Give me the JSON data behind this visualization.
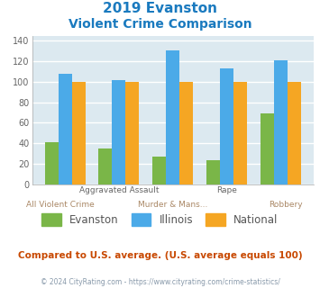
{
  "title_line1": "2019 Evanston",
  "title_line2": "Violent Crime Comparison",
  "title_color": "#1a7abf",
  "categories": [
    "All Violent Crime",
    "Aggravated Assault",
    "Murder & Mans...",
    "Rape",
    "Robbery"
  ],
  "evanston_values": [
    41,
    35,
    27,
    23,
    69
  ],
  "illinois_values": [
    108,
    102,
    131,
    113,
    121
  ],
  "national_values": [
    100,
    100,
    100,
    100,
    100
  ],
  "evanston_color": "#7ab648",
  "illinois_color": "#4baae8",
  "national_color": "#f5a623",
  "ylim": [
    0,
    145
  ],
  "yticks": [
    0,
    20,
    40,
    60,
    80,
    100,
    120,
    140
  ],
  "bar_width": 0.25,
  "bg_color": "#dce9f0",
  "grid_color": "#ffffff",
  "legend_labels": [
    "Evanston",
    "Illinois",
    "National"
  ],
  "upper_tick_labels": [
    "",
    "Aggravated Assault",
    "",
    "Rape",
    ""
  ],
  "lower_tick_labels": {
    "0": "All Violent Crime",
    "2": "Murder & Mans...",
    "4": "Robbery"
  },
  "footer_text": "Compared to U.S. average. (U.S. average equals 100)",
  "footer_color": "#c84800",
  "copyright_text": "© 2024 CityRating.com - https://www.cityrating.com/crime-statistics/",
  "copyright_color": "#8899aa"
}
